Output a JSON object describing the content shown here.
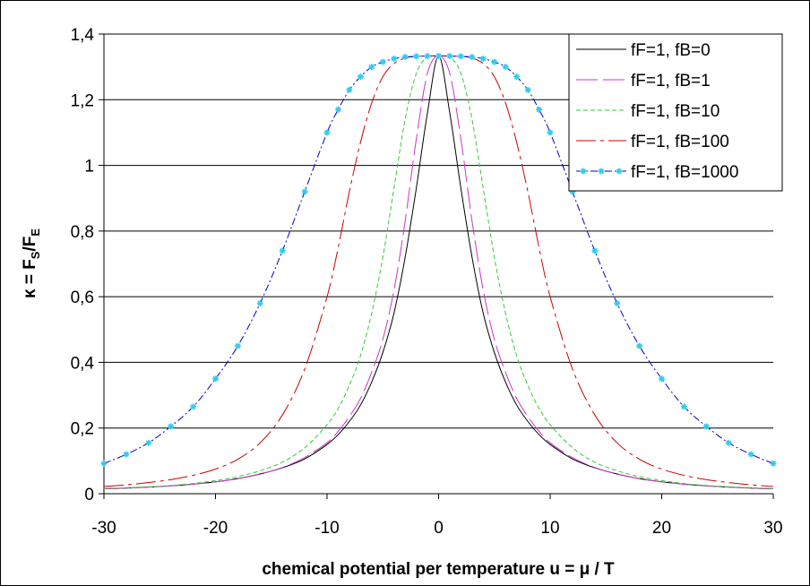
{
  "chart_data": {
    "type": "line",
    "xlabel": "chemical potential per temperature u = μ / T",
    "ylabel_parts": {
      "kappa": "κ = F",
      "sub1": "S",
      "slash": "/F",
      "sub2": "E"
    },
    "xlim": [
      -30,
      30
    ],
    "ylim": [
      0,
      1.4
    ],
    "x_ticks": [
      -30,
      -20,
      -10,
      0,
      10,
      20,
      30
    ],
    "x_tick_labels": [
      "-30",
      "-20",
      "-10",
      "0",
      "10",
      "20",
      "30"
    ],
    "y_ticks": [
      0,
      0.2,
      0.4,
      0.6,
      0.8,
      1.0,
      1.2,
      1.4
    ],
    "y_tick_labels": [
      "0",
      "0,2",
      "0,4",
      "0,6",
      "0,8",
      "1",
      "1,2",
      "1,4"
    ],
    "grid": "horizontal",
    "legend_position": "top-right",
    "x": [
      -30,
      -28,
      -26,
      -24,
      -22,
      -20,
      -18,
      -16,
      -14,
      -12,
      -10,
      -9,
      -8,
      -7,
      -6,
      -5,
      -4,
      -3,
      -2,
      -1,
      0,
      1,
      2,
      3,
      4,
      5,
      6,
      7,
      8,
      9,
      10,
      12,
      14,
      16,
      18,
      20,
      22,
      24,
      26,
      28,
      30
    ],
    "series": [
      {
        "name": "fF=1, fB=0",
        "color": "#000000",
        "dash": "none",
        "values": [
          0.015,
          0.017,
          0.02,
          0.024,
          0.029,
          0.036,
          0.046,
          0.06,
          0.079,
          0.106,
          0.15,
          0.18,
          0.22,
          0.27,
          0.34,
          0.43,
          0.55,
          0.72,
          0.93,
          1.16,
          1.333,
          1.16,
          0.93,
          0.72,
          0.55,
          0.43,
          0.34,
          0.27,
          0.22,
          0.18,
          0.15,
          0.106,
          0.079,
          0.06,
          0.046,
          0.036,
          0.029,
          0.024,
          0.02,
          0.017,
          0.015
        ]
      },
      {
        "name": "fF=1, fB=1",
        "color": "#cc33cc",
        "dash": "24,6",
        "values": [
          0.015,
          0.017,
          0.02,
          0.024,
          0.029,
          0.036,
          0.046,
          0.06,
          0.08,
          0.11,
          0.155,
          0.19,
          0.235,
          0.29,
          0.37,
          0.47,
          0.62,
          0.83,
          1.08,
          1.28,
          1.333,
          1.28,
          1.08,
          0.83,
          0.62,
          0.47,
          0.37,
          0.29,
          0.235,
          0.19,
          0.155,
          0.11,
          0.08,
          0.06,
          0.046,
          0.036,
          0.029,
          0.024,
          0.02,
          0.017,
          0.015
        ]
      },
      {
        "name": "fF=1, fB=10",
        "color": "#33cc33",
        "dash": "5,3",
        "values": [
          0.016,
          0.018,
          0.021,
          0.025,
          0.031,
          0.04,
          0.052,
          0.07,
          0.096,
          0.14,
          0.21,
          0.26,
          0.33,
          0.42,
          0.55,
          0.72,
          0.93,
          1.14,
          1.28,
          1.33,
          1.333,
          1.33,
          1.28,
          1.14,
          0.93,
          0.72,
          0.55,
          0.42,
          0.33,
          0.26,
          0.21,
          0.14,
          0.096,
          0.07,
          0.052,
          0.04,
          0.031,
          0.025,
          0.021,
          0.018,
          0.016
        ]
      },
      {
        "name": "fF=1, fB=100",
        "color": "#cc0000",
        "dash": "22,5,4,5",
        "values": [
          0.022,
          0.027,
          0.034,
          0.043,
          0.056,
          0.075,
          0.105,
          0.155,
          0.24,
          0.38,
          0.6,
          0.75,
          0.92,
          1.07,
          1.19,
          1.27,
          1.31,
          1.327,
          1.332,
          1.333,
          1.333,
          1.333,
          1.332,
          1.327,
          1.31,
          1.27,
          1.19,
          1.07,
          0.92,
          0.75,
          0.6,
          0.38,
          0.24,
          0.155,
          0.105,
          0.075,
          0.056,
          0.043,
          0.034,
          0.027,
          0.022
        ]
      },
      {
        "name": "fF=1, fB=1000",
        "color": "#0000cc",
        "dash": "8,3,2,3",
        "marker": "star",
        "marker_color": "#33ccee",
        "values": [
          0.092,
          0.12,
          0.155,
          0.205,
          0.265,
          0.35,
          0.45,
          0.58,
          0.74,
          0.92,
          1.1,
          1.17,
          1.23,
          1.27,
          1.3,
          1.315,
          1.325,
          1.33,
          1.332,
          1.333,
          1.333,
          1.333,
          1.332,
          1.33,
          1.325,
          1.315,
          1.3,
          1.27,
          1.23,
          1.17,
          1.1,
          0.92,
          0.74,
          0.58,
          0.45,
          0.35,
          0.265,
          0.205,
          0.155,
          0.12,
          0.092
        ]
      }
    ]
  }
}
